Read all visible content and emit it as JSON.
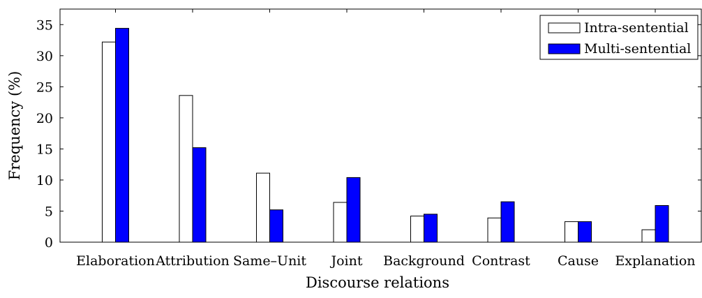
{
  "chart_data": {
    "type": "bar",
    "xlabel": "Discourse relations",
    "ylabel": "Frequency (%)",
    "ylim": [
      0,
      37.5
    ],
    "yticks": [
      0,
      5,
      10,
      15,
      20,
      25,
      30,
      35
    ],
    "categories": [
      "Elaboration",
      "Attribution",
      "Same–Unit",
      "Joint",
      "Background",
      "Contrast",
      "Cause",
      "Explanation"
    ],
    "series": [
      {
        "name": "Intra-sentential",
        "color": "#ffffff",
        "values": [
          32.2,
          23.6,
          11.1,
          6.4,
          4.2,
          3.9,
          3.3,
          2.0
        ]
      },
      {
        "name": "Multi-sentential",
        "color": "#0000ff",
        "values": [
          34.4,
          15.2,
          5.2,
          10.4,
          4.5,
          6.5,
          3.3,
          5.9
        ]
      }
    ],
    "legend_position": "top-right",
    "grid": false
  }
}
